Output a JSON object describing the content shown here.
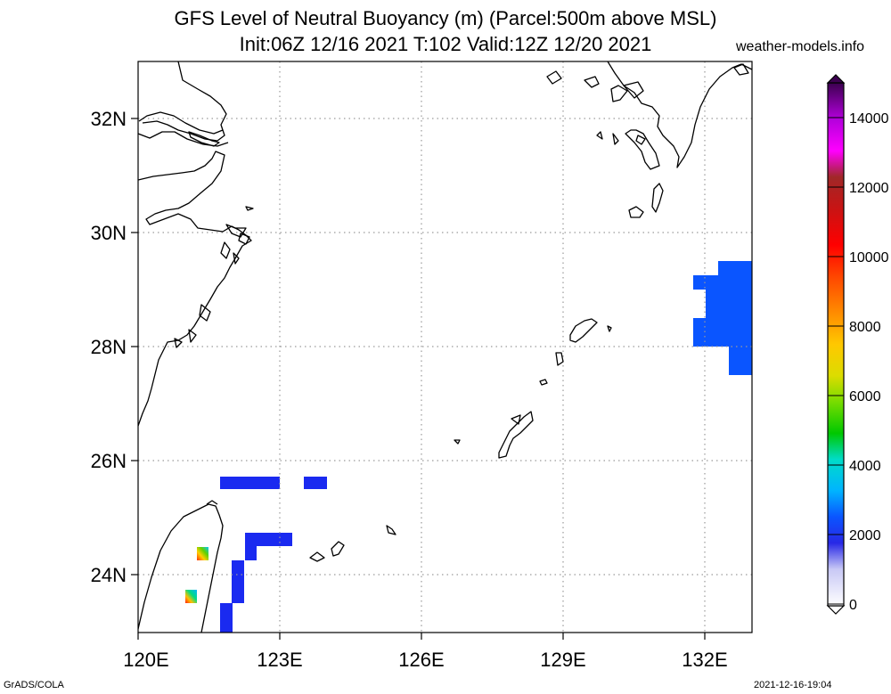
{
  "title_line1": "GFS Level of Neutral Buoyancy (m) (Parcel:500m above MSL)",
  "title_line2": "Init:06Z 12/16 2021 T:102 Valid:12Z 12/20 2021",
  "site": "weather-models.info",
  "footer_left": "GrADS/COLA",
  "footer_right": "2021-12-16-19:04",
  "map": {
    "lon_labels": [
      "120E",
      "123E",
      "126E",
      "129E",
      "132E"
    ],
    "lat_labels": [
      "24N",
      "26N",
      "28N",
      "30N",
      "32N"
    ]
  },
  "colorbar": {
    "labels": [
      "0",
      "2000",
      "4000",
      "6000",
      "8000",
      "10000",
      "12000",
      "14000"
    ]
  },
  "colors": {
    "primary_blue": "#0a55ff",
    "deep_blue": "#1a2af0"
  }
}
